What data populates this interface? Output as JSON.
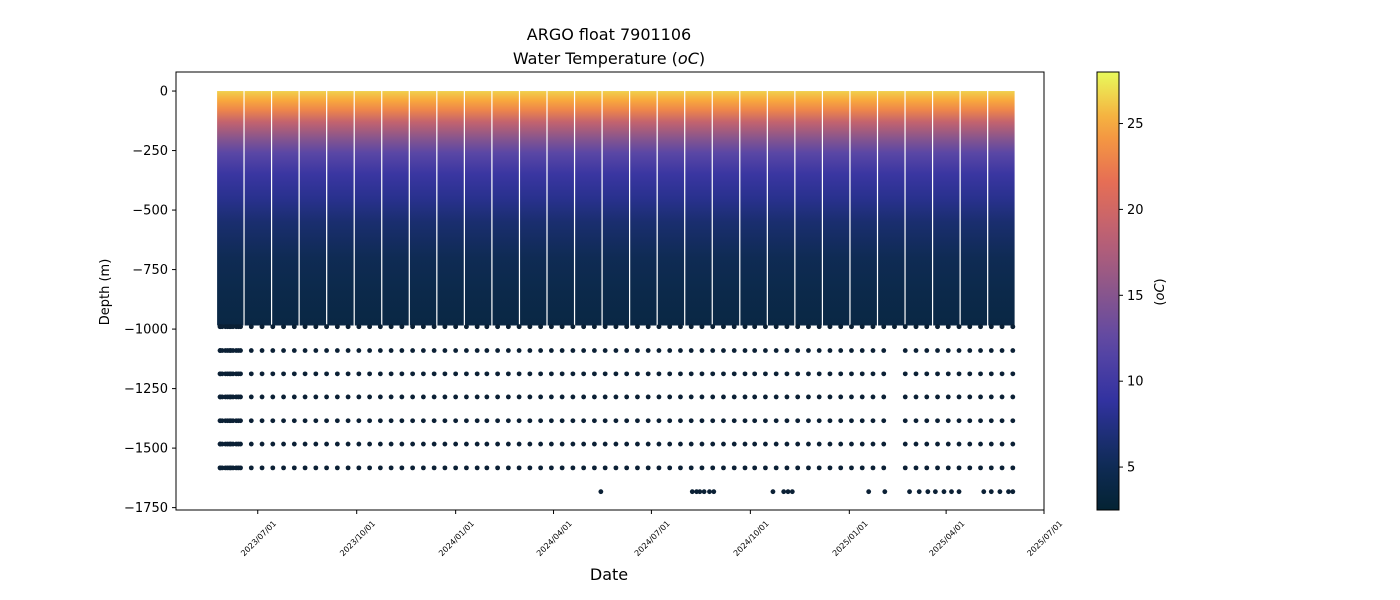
{
  "chart_data": {
    "type": "scatter",
    "title": "ARGO float 7901106",
    "subtitle_prefix": "Water Temperature (",
    "subtitle_unit": "oC",
    "subtitle_suffix": ")",
    "xlabel": "Date",
    "ylabel": "Depth (m)",
    "ylim": [
      -1760,
      80
    ],
    "xlim": [
      "2023-04-16",
      "2025-07-01"
    ],
    "x_ticks": [
      "2023/07/01",
      "2023/10/01",
      "2024/01/01",
      "2024/04/01",
      "2024/07/01",
      "2024/10/01",
      "2025/01/01",
      "2025/04/01",
      "2025/07/01"
    ],
    "x_tick_dates": [
      "2023-07-01",
      "2023-10-01",
      "2024-01-01",
      "2024-04-01",
      "2024-07-01",
      "2024-10-01",
      "2025-01-01",
      "2025-04-01",
      "2025-07-01"
    ],
    "y_ticks": [
      0,
      -250,
      -500,
      -750,
      -1000,
      -1250,
      -1500,
      -1750
    ],
    "y_tick_labels": [
      "0",
      "−250",
      "−500",
      "−750",
      "−1000",
      "−1250",
      "−1500",
      "−1750"
    ],
    "profiles": {
      "first_date": "2023-05-27",
      "last_date": "2025-06-02",
      "count": 75,
      "max_dense_depth": -985
    },
    "deep_sample_depths": [
      -990,
      -1090,
      -1188,
      -1285,
      -1385,
      -1483,
      -1583
    ],
    "sparse_deep_depth": -1683,
    "sparse_deep_dates": [
      "2024-05-15",
      "2024-08-08",
      "2024-08-12",
      "2024-08-15",
      "2024-08-19",
      "2024-08-24",
      "2024-08-28",
      "2024-10-22",
      "2024-11-01",
      "2024-11-05",
      "2024-11-09",
      "2025-01-19",
      "2025-02-03",
      "2025-02-26",
      "2025-03-07",
      "2025-03-15",
      "2025-03-22",
      "2025-03-30",
      "2025-04-06",
      "2025-04-13",
      "2025-05-06",
      "2025-05-13",
      "2025-05-21",
      "2025-05-29",
      "2025-06-02"
    ],
    "gap_dates": [
      "2025-02-02",
      "2025-02-22"
    ],
    "colorbar": {
      "label": "(oC)",
      "label_unit": "oC",
      "min": 2.5,
      "max": 28,
      "ticks": [
        5,
        10,
        15,
        20,
        25
      ],
      "tick_labels": [
        "5",
        "10",
        "15",
        "20",
        "25"
      ],
      "colormap": "thermal"
    },
    "temperature_profile": {
      "depths": [
        0,
        -40,
        -80,
        -130,
        -200,
        -260,
        -350,
        -450,
        -550,
        -700,
        -850,
        -985
      ],
      "temperatures": [
        26.5,
        25,
        23,
        19,
        15,
        12,
        9.5,
        8,
        6.5,
        5,
        4.2,
        3.8
      ]
    },
    "deep_point_color": "#0b2035"
  }
}
